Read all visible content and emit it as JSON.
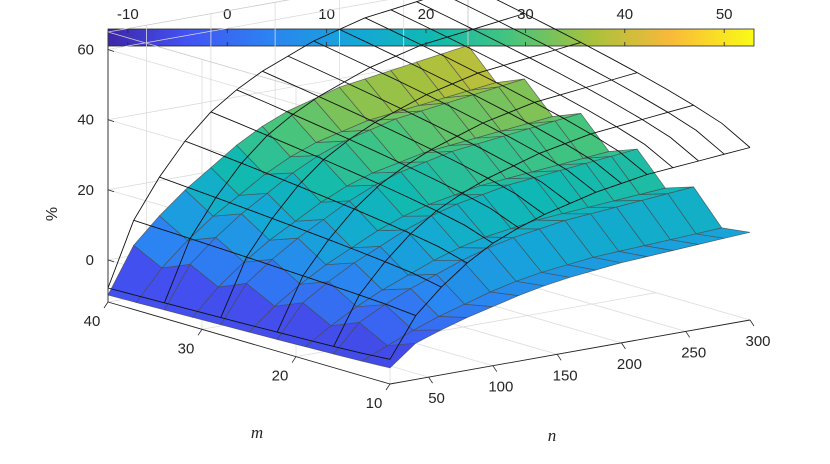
{
  "chart_data": {
    "type": "surface3d",
    "title": "",
    "xlabel": "n",
    "ylabel": "m",
    "zlabel": "%",
    "n_ticks": [
      "50",
      "100",
      "150",
      "200",
      "250",
      "300"
    ],
    "m_ticks": [
      "10",
      "20",
      "30",
      "40"
    ],
    "z_ticks": [
      "0",
      "20",
      "40",
      "60"
    ],
    "colorbar_ticks": [
      "-10",
      "0",
      "10",
      "20",
      "30",
      "40",
      "50"
    ],
    "colorbar_range": [
      -12,
      53
    ],
    "n_range": [
      20,
      300
    ],
    "m_range": [
      10,
      40
    ],
    "z_range": [
      -12,
      65
    ],
    "n": [
      20,
      40,
      60,
      80,
      100,
      120,
      140,
      160,
      180,
      200,
      220,
      240,
      260,
      280,
      300
    ],
    "m": [
      10,
      13,
      16,
      19,
      22,
      25,
      28,
      31,
      34,
      37,
      40
    ],
    "colored_surface_ridge_percent": [
      -10,
      1,
      8,
      14,
      19,
      24,
      28,
      31,
      33,
      35,
      36,
      37,
      38,
      39,
      40
    ],
    "wireframe_upper_bound_percent": [
      -8,
      10,
      21,
      30,
      37,
      42,
      46,
      49,
      52,
      54,
      56,
      57,
      58,
      59,
      60
    ],
    "colormap": "parula",
    "grid": true
  }
}
